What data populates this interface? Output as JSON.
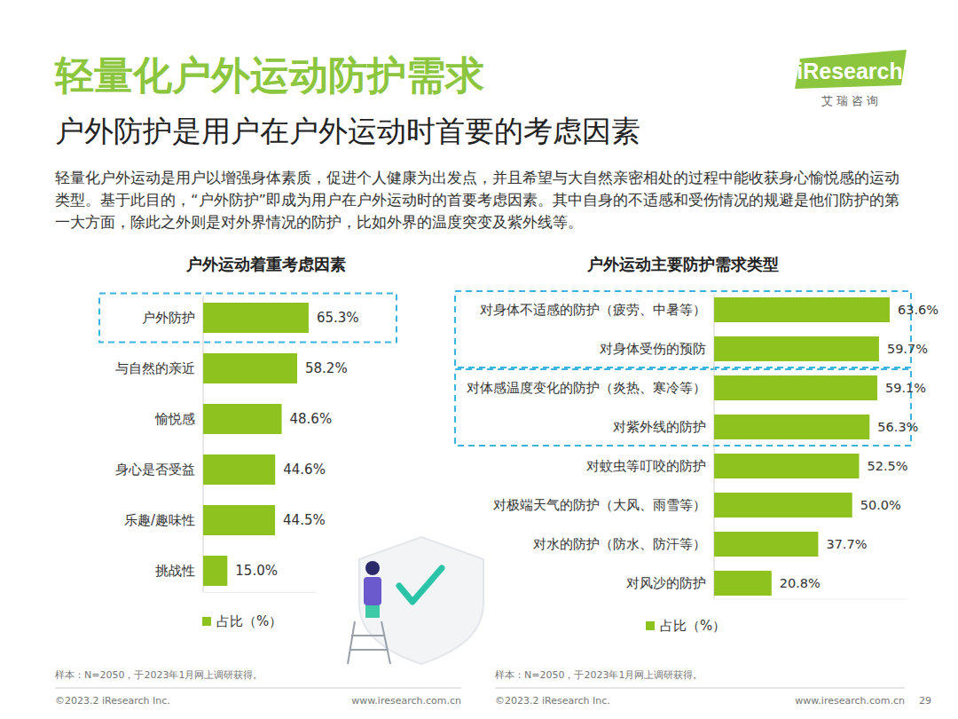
{
  "header": {
    "title": "轻量化户外运动防护需求",
    "subtitle": "户外防护是用户在户外运动时首要的考虑因素",
    "body": "轻量化户外运动是用户以增强身体素质，促进个人健康为出发点，并且希望与大自然亲密相处的过程中能收获身心愉悦感的运动类型。基于此目的，“户外防护”即成为用户在户外运动时的首要考虑因素。其中自身的不适感和受伤情况的规避是他们防护的第一大方面，除此之外则是对外界情况的防护，比如外界的温度突变及紫外线等。",
    "logo": "iResearch",
    "logo_sub": "艾 瑞 咨 询"
  },
  "chart_data": [
    {
      "type": "bar",
      "orientation": "horizontal",
      "title": "户外运动着重考虑因素",
      "categories": [
        "户外防护",
        "与自然的亲近",
        "愉悦感",
        "身心是否受益",
        "乐趣/趣味性",
        "挑战性"
      ],
      "series": [
        {
          "name": "占比（%）",
          "color": "#8dc21f",
          "values": [
            65.3,
            58.2,
            48.6,
            44.6,
            44.5,
            15.0
          ],
          "value_labels": [
            "65.3%",
            "58.2%",
            "48.6%",
            "44.6%",
            "44.5%",
            "15.0%"
          ]
        }
      ],
      "xlim": [
        0,
        70
      ],
      "tick_labels": "y",
      "data_labels": true,
      "legend": "bottom",
      "grid": false,
      "note": "样本：N=2050，于2023年1月网上调研获得。"
    },
    {
      "type": "bar",
      "orientation": "horizontal",
      "title": "户外运动主要防护需求类型",
      "categories": [
        "对身体不适感的防护（疲劳、中暑等）",
        "对身体受伤的预防",
        "对体感温度变化的防护（炎热、寒冷等）",
        "对紫外线的防护",
        "对蚊虫等叮咬的防护",
        "对极端天气的防护（大风、雨雪等）",
        "对水的防护（防水、防汗等）",
        "对风沙的防护"
      ],
      "series": [
        {
          "name": "占比（%）",
          "color": "#8dc21f",
          "values": [
            63.6,
            59.7,
            59.1,
            56.3,
            52.5,
            50.0,
            37.7,
            20.8
          ],
          "value_labels": [
            "63.6%",
            "59.7%",
            "59.1%",
            "56.3%",
            "52.5%",
            "50.0%",
            "37.7%",
            "20.8%"
          ]
        }
      ],
      "xlim": [
        0,
        70
      ],
      "tick_labels": "y",
      "data_labels": true,
      "legend": "bottom",
      "grid": false,
      "note": "样本：N=2050，于2023年1月网上调研获得。"
    }
  ],
  "footer": {
    "copyright": "©2023.2 iResearch Inc.",
    "url": "www.iresearch.com.cn",
    "page": "29"
  }
}
